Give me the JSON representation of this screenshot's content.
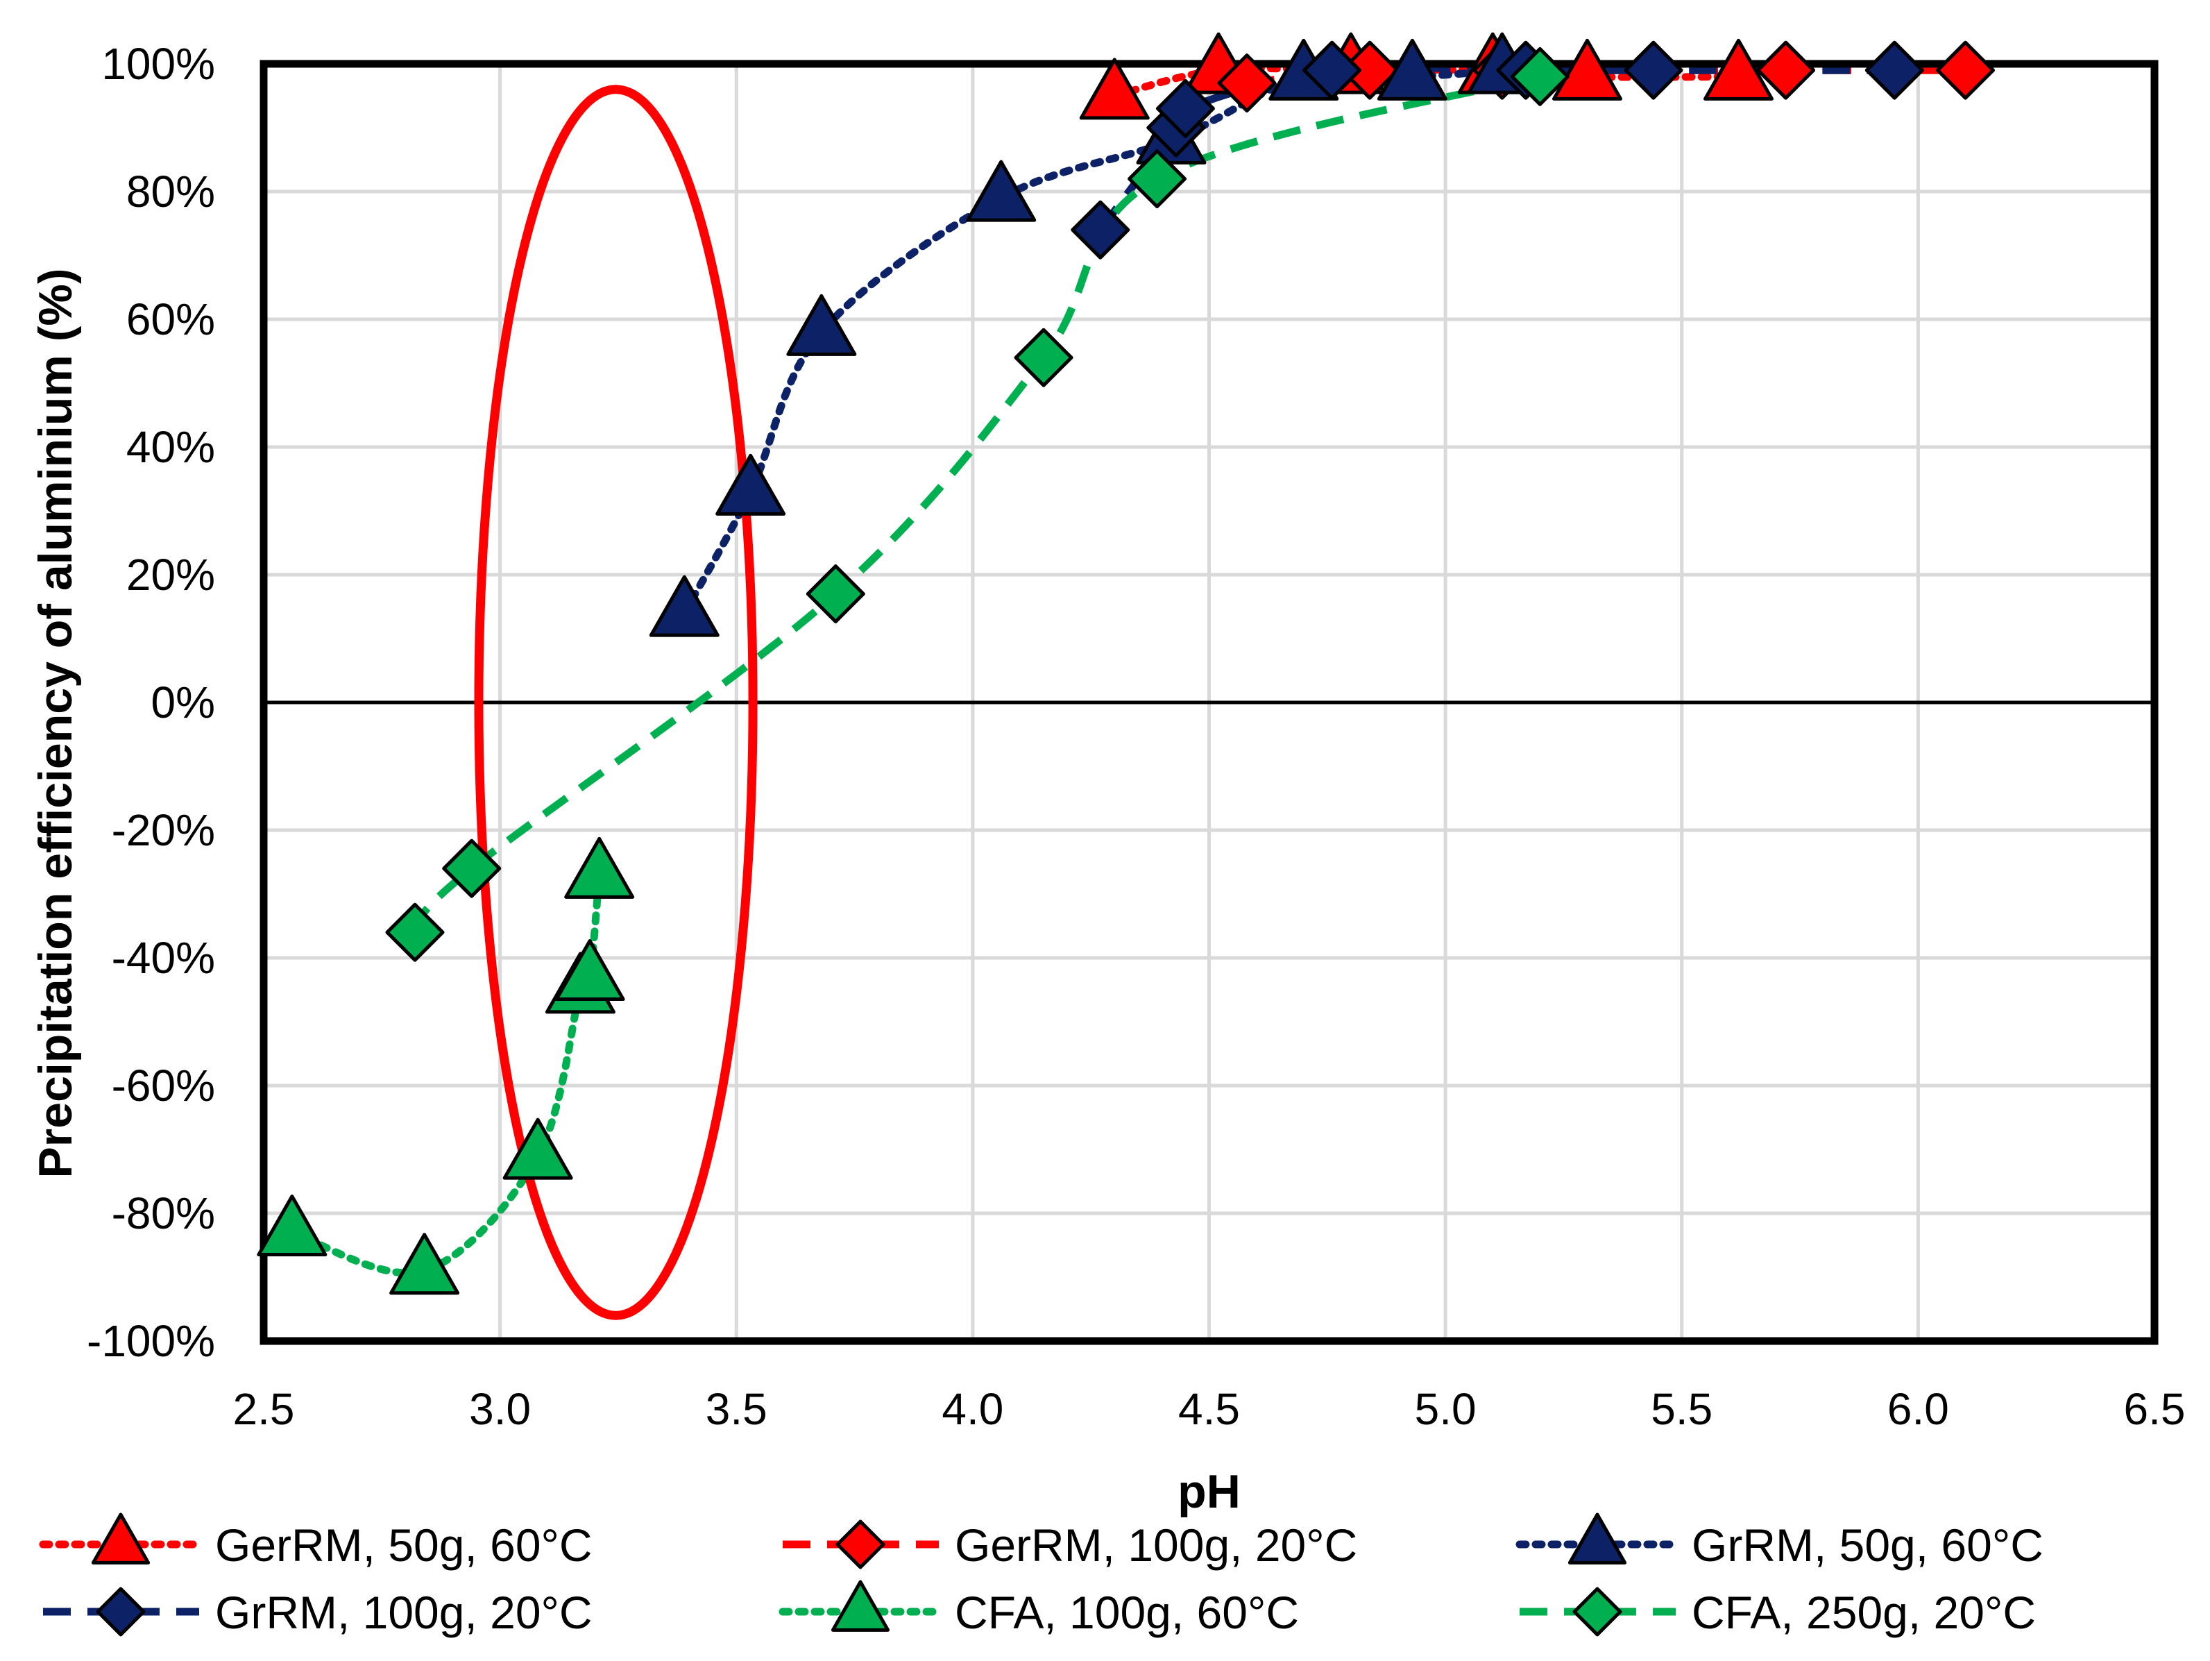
{
  "chart_data": {
    "type": "scatter",
    "title": "",
    "xlabel": "pH",
    "ylabel": "Precipitation efficiency of aluminium (%)",
    "xlim": [
      2.5,
      6.5
    ],
    "ylim": [
      -100,
      100
    ],
    "x_ticks": [
      2.5,
      3.0,
      3.5,
      4.0,
      4.5,
      5.0,
      5.5,
      6.0,
      6.5
    ],
    "x_tick_labels": [
      "2.5",
      "3.0",
      "3.5",
      "4.0",
      "4.5",
      "5.0",
      "5.5",
      "6.0",
      "6.5"
    ],
    "y_ticks": [
      -100,
      -80,
      -60,
      -40,
      -20,
      0,
      20,
      40,
      60,
      80,
      100
    ],
    "y_tick_labels": [
      "-100%",
      "-80%",
      "-60%",
      "-40%",
      "-20%",
      "0%",
      "20%",
      "40%",
      "60%",
      "80%",
      "100%"
    ],
    "grid": true,
    "legend_position": "bottom",
    "annotation": "red ellipse highlighting pH 2.95-3.5",
    "series": [
      {
        "name": "GerRM, 50g, 60°C",
        "marker": "triangle",
        "line": "dotted",
        "color": "#ff0000",
        "points": [
          [
            4.3,
            95
          ],
          [
            4.52,
            99
          ],
          [
            4.8,
            99
          ],
          [
            5.1,
            99
          ],
          [
            5.3,
            98
          ],
          [
            5.62,
            98
          ]
        ]
      },
      {
        "name": "GerRM, 100g, 20°C",
        "marker": "diamond",
        "line": "dashed",
        "color": "#ff0000",
        "points": [
          [
            4.58,
            97
          ],
          [
            4.84,
            99
          ],
          [
            5.12,
            99
          ],
          [
            5.72,
            99
          ],
          [
            6.1,
            99
          ]
        ]
      },
      {
        "name": "GrRM, 50g, 60°C",
        "marker": "triangle",
        "line": "dotted",
        "color": "#0d2266",
        "points": [
          [
            3.39,
            14
          ],
          [
            3.53,
            33
          ],
          [
            3.68,
            58
          ],
          [
            4.06,
            79
          ],
          [
            4.42,
            88
          ],
          [
            4.7,
            98
          ],
          [
            4.93,
            98
          ],
          [
            5.12,
            99
          ]
        ]
      },
      {
        "name": "GrRM, 100g, 20°C",
        "marker": "diamond",
        "line": "dashed",
        "color": "#0d2266",
        "points": [
          [
            4.27,
            74
          ],
          [
            4.43,
            90
          ],
          [
            4.45,
            93
          ],
          [
            4.76,
            99
          ],
          [
            5.17,
            99
          ],
          [
            5.44,
            99
          ],
          [
            5.95,
            99
          ]
        ]
      },
      {
        "name": "CFA, 100g, 60°C",
        "marker": "triangle",
        "line": "dotted",
        "color": "#00b050",
        "points": [
          [
            2.56,
            -83
          ],
          [
            2.84,
            -89
          ],
          [
            3.08,
            -71
          ],
          [
            3.17,
            -45
          ],
          [
            3.19,
            -43
          ],
          [
            3.21,
            -27
          ]
        ]
      },
      {
        "name": "CFA, 250g, 20°C",
        "marker": "diamond",
        "line": "dashed",
        "color": "#00b050",
        "points": [
          [
            2.82,
            -36
          ],
          [
            2.94,
            -26
          ],
          [
            3.71,
            17
          ],
          [
            4.15,
            54
          ],
          [
            4.39,
            82
          ],
          [
            5.2,
            98
          ]
        ]
      }
    ]
  }
}
